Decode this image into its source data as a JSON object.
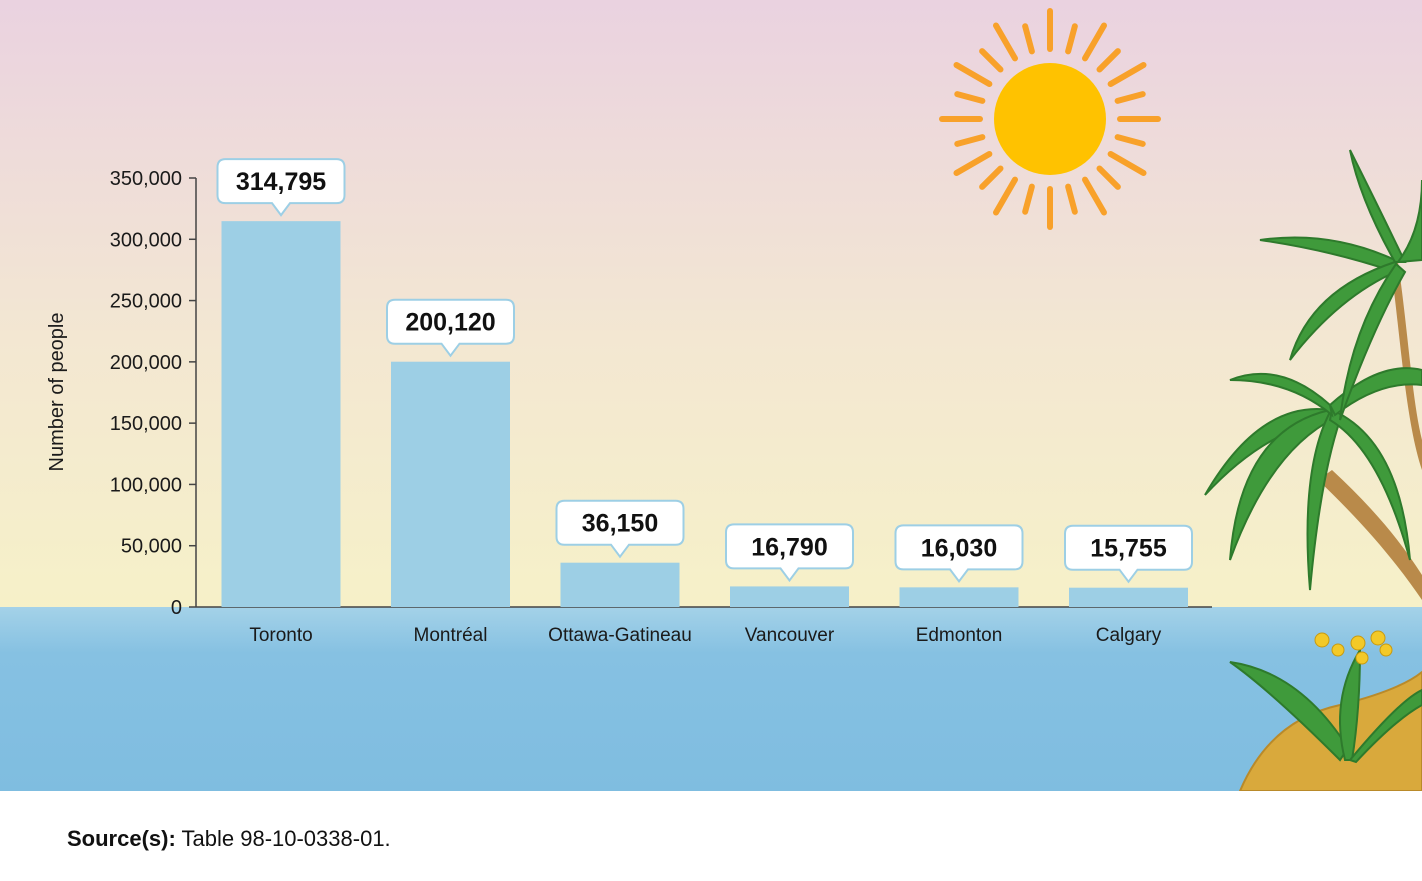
{
  "chart_data": {
    "type": "bar",
    "title": "",
    "xlabel": "",
    "ylabel": "Number of people",
    "ylim": [
      0,
      350000
    ],
    "yticks": [
      0,
      50000,
      100000,
      150000,
      200000,
      250000,
      300000,
      350000
    ],
    "ytick_labels": [
      "0",
      "50,000",
      "100,000",
      "150,000",
      "200,000",
      "250,000",
      "300,000",
      "350,000"
    ],
    "categories": [
      "Toronto",
      "Montréal",
      "Ottawa-Gatineau",
      "Vancouver",
      "Edmonton",
      "Calgary"
    ],
    "values": [
      314795,
      200120,
      36150,
      16790,
      16030,
      15755
    ],
    "value_labels": [
      "314,795",
      "200,120",
      "36,150",
      "16,790",
      "16,030",
      "15,755"
    ],
    "grid": false,
    "legend": "none",
    "bar_color": "#9dcfe5"
  },
  "source": {
    "label": "Source(s):",
    "text": " Table 98-10-0338-01."
  },
  "colors": {
    "sky_top": "#ead2e0",
    "sky_bottom": "#f6f1c8",
    "sea": "#7fbde0",
    "sun": "#ffc200",
    "sun_rays": "#f8a12a",
    "palm": "#3f9a3b",
    "island": "#d9a93c"
  }
}
